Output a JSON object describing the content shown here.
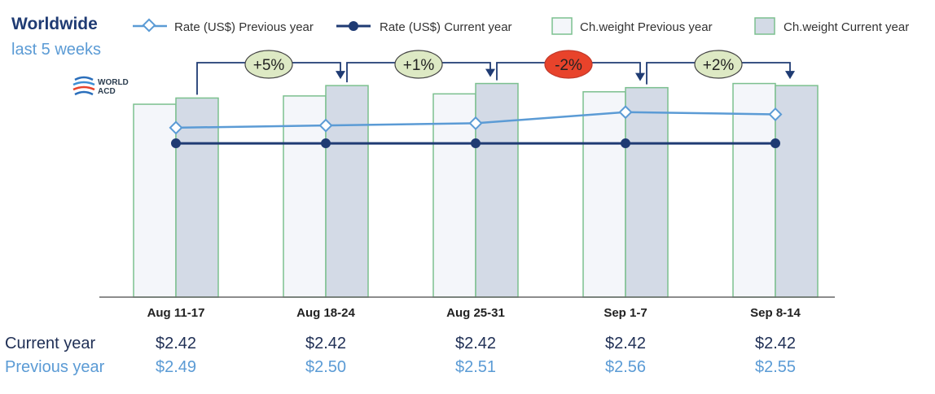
{
  "header": {
    "title": "Worldwide",
    "subtitle": "last 5 weeks",
    "logo_text": [
      "WORLD",
      "ACD"
    ]
  },
  "legend": [
    {
      "key": "rate_prev",
      "label": "Rate (US$) Previous year"
    },
    {
      "key": "rate_cur",
      "label": "Rate (US$) Current year"
    },
    {
      "key": "cw_prev",
      "label": "Ch.weight Previous year"
    },
    {
      "key": "cw_cur",
      "label": "Ch.weight Current year"
    }
  ],
  "colors": {
    "rate_prev": "#5b9bd5",
    "rate_cur": "#1f3b73",
    "bar_prev_fill": "#f4f6fa",
    "bar_cur_fill": "#d3dae6",
    "bar_stroke": "#7cc08f",
    "bubble_pos": "#dde9c4",
    "bubble_neg": "#e8432b",
    "arrow": "#1f3b73"
  },
  "table": {
    "current_label": "Current year",
    "previous_label": "Previous year",
    "current_values": [
      "$2.42",
      "$2.42",
      "$2.42",
      "$2.42",
      "$2.42"
    ],
    "previous_values": [
      "$2.49",
      "$2.50",
      "$2.51",
      "$2.56",
      "$2.55"
    ]
  },
  "chart_data": {
    "type": "bar",
    "categories": [
      "Aug 11-17",
      "Aug 18-24",
      "Aug 25-31",
      "Sep 1-7",
      "Sep 8-14"
    ],
    "series": [
      {
        "name": "Ch.weight Previous year",
        "type": "bar",
        "values": [
          0.93,
          0.97,
          0.98,
          0.99,
          1.03
        ]
      },
      {
        "name": "Ch.weight Current year",
        "type": "bar",
        "values": [
          0.96,
          1.02,
          1.03,
          1.01,
          1.02
        ]
      },
      {
        "name": "Rate (US$) Previous year",
        "type": "line",
        "values": [
          2.49,
          2.5,
          2.51,
          2.56,
          2.55
        ]
      },
      {
        "name": "Rate (US$) Current year",
        "type": "line",
        "values": [
          2.42,
          2.42,
          2.42,
          2.42,
          2.42
        ]
      }
    ],
    "weight_ylim": [
      0,
      1.15
    ],
    "rate_ylim": [
      1.73,
      2.8
    ],
    "changes": [
      {
        "label": "+5%",
        "from": 0,
        "to": 1,
        "negative": false
      },
      {
        "label": "+1%",
        "from": 1,
        "to": 2,
        "negative": false
      },
      {
        "label": "-2%",
        "from": 2,
        "to": 3,
        "negative": true
      },
      {
        "label": "+2%",
        "from": 3,
        "to": 4,
        "negative": false
      }
    ],
    "grid": false,
    "legend_position": "top"
  }
}
